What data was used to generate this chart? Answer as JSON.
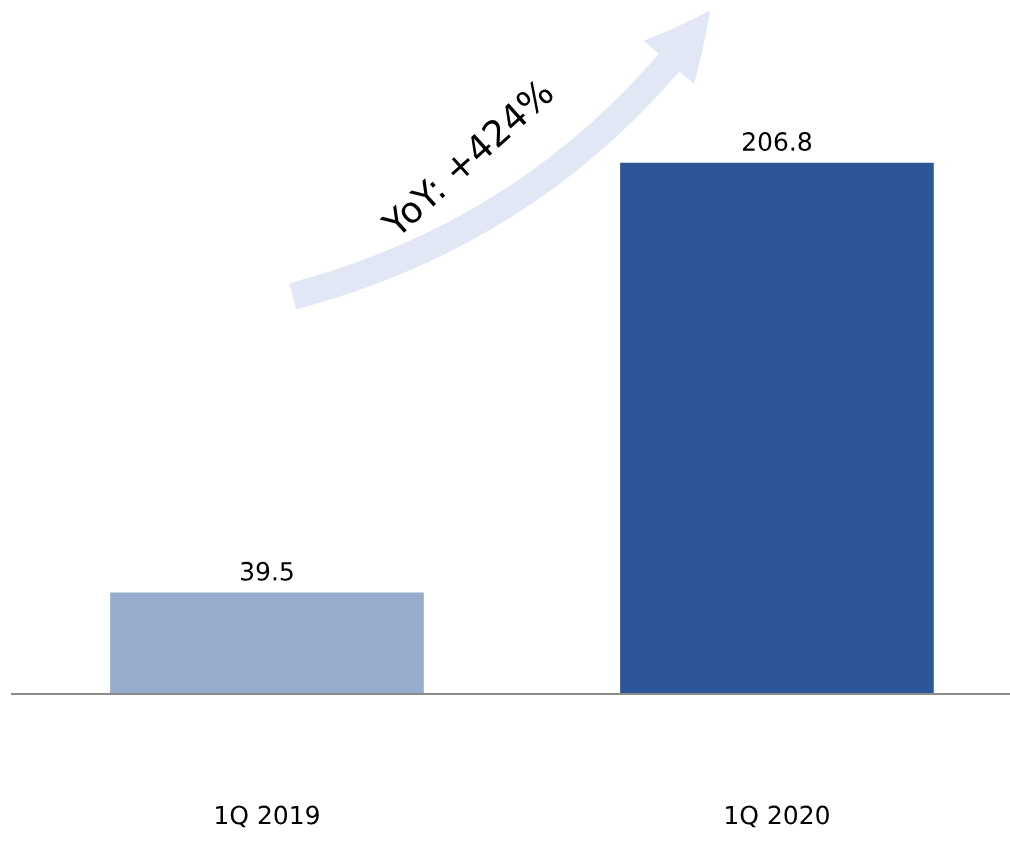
{
  "chart_data": {
    "type": "bar",
    "categories": [
      "1Q 2019",
      "1Q 2020"
    ],
    "values": [
      39.5,
      206.8
    ],
    "colors": [
      "#97abcd",
      "#2d5699"
    ],
    "data_labels": true,
    "annotations": [
      "YoY: +424%"
    ],
    "grid": false,
    "legend": false
  }
}
